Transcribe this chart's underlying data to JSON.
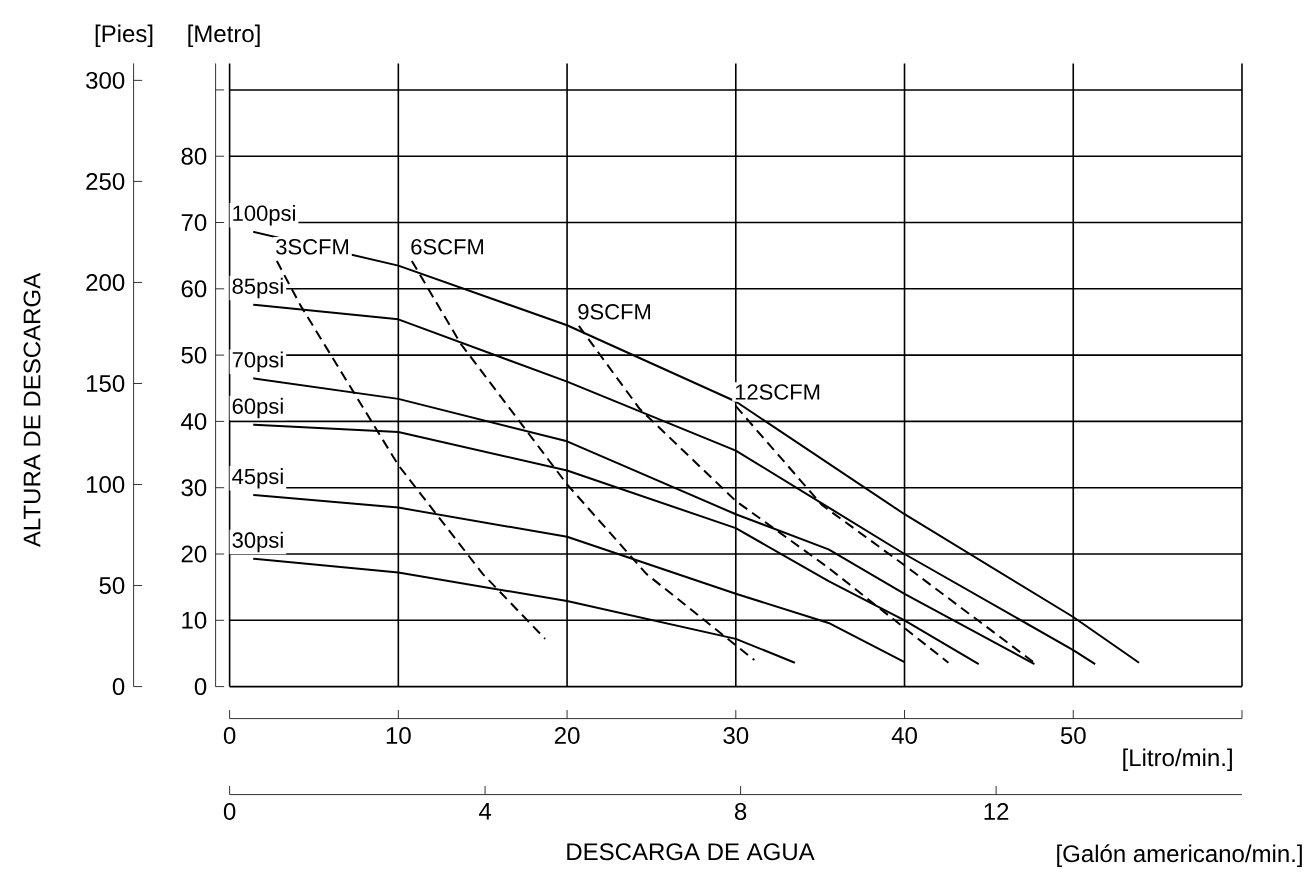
{
  "chart_data": {
    "type": "line",
    "xlabel": "[Litro/min.]",
    "x2label": "[Galón americano/min.]",
    "ylabel": "[Metro]",
    "y2label": "[Pies]",
    "annotations": [
      "ALTURA DE DESCARGA",
      "DESCARGA DE AGUA"
    ],
    "xlim": [
      0,
      60
    ],
    "xticks": [
      0,
      10,
      20,
      30,
      40,
      50,
      {
        "value": 60,
        "label": null
      }
    ],
    "x2lim": [
      0,
      15.85
    ],
    "x2ticks": [
      0,
      4,
      8,
      12
    ],
    "ylim": [
      0,
      94
    ],
    "yticks": [
      0,
      10,
      20,
      30,
      40,
      50,
      60,
      70,
      80,
      {
        "value": 90,
        "label": null
      }
    ],
    "y2lim": [
      0,
      308.4
    ],
    "y2ticks": [
      0,
      50,
      100,
      150,
      200,
      250,
      300
    ],
    "grid": true,
    "marker": "none",
    "series": [
      {
        "name": "100psi",
        "color": "#000000",
        "line_style": "solid",
        "x": [
          1.4,
          10,
          20,
          30,
          40,
          50,
          53.9
        ],
        "values": [
          68.6,
          63.5,
          54.5,
          43,
          26,
          10.5,
          3.6
        ]
      },
      {
        "name": "85psi",
        "color": "#000000",
        "line_style": "solid",
        "x": [
          1.4,
          10,
          20,
          30,
          40,
          50,
          51.3
        ],
        "values": [
          57.6,
          55.4,
          46,
          35.6,
          20,
          5.5,
          3.4
        ]
      },
      {
        "name": "70psi",
        "color": "#000000",
        "line_style": "solid",
        "x": [
          1.4,
          10,
          20,
          30,
          35.5,
          40,
          47.7
        ],
        "values": [
          46.5,
          43.4,
          37,
          26,
          20.7,
          14,
          3.4
        ]
      },
      {
        "name": "60psi",
        "color": "#000000",
        "line_style": "solid",
        "x": [
          1.4,
          10,
          20,
          30,
          35.5,
          40,
          44.4
        ],
        "values": [
          39.5,
          38.4,
          32.6,
          23.9,
          15.9,
          10,
          3.4
        ]
      },
      {
        "name": "45psi",
        "color": "#000000",
        "line_style": "solid",
        "x": [
          1.4,
          10,
          20,
          30,
          35.5,
          40
        ],
        "values": [
          28.9,
          27,
          22.6,
          14,
          9.6,
          3.7
        ]
      },
      {
        "name": "30psi",
        "color": "#000000",
        "line_style": "solid",
        "x": [
          1.4,
          10,
          20,
          30,
          33.5
        ],
        "values": [
          19.3,
          17.2,
          12.9,
          7.2,
          3.6
        ]
      },
      {
        "name": "3SCFM",
        "color": "#000000",
        "line_style": "dashed",
        "x": [
          2.8,
          4.2,
          10,
          15,
          18.7
        ],
        "values": [
          64.2,
          57.5,
          33.4,
          17,
          7.2
        ]
      },
      {
        "name": "6SCFM",
        "color": "#000000",
        "line_style": "dashed",
        "x": [
          10.8,
          13.7,
          20,
          24.7,
          31.1
        ],
        "values": [
          64.2,
          51.7,
          30.5,
          17,
          4
        ]
      },
      {
        "name": "9SCFM",
        "color": "#000000",
        "line_style": "dashed",
        "x": [
          20.7,
          24.3,
          30,
          35.5,
          42.6
        ],
        "values": [
          54.4,
          41.9,
          28,
          17.9,
          3.6
        ]
      },
      {
        "name": "12SCFM",
        "color": "#000000",
        "line_style": "dashed",
        "x": [
          30,
          35.1,
          40,
          47.8
        ],
        "values": [
          42.3,
          27.4,
          18.3,
          3.4
        ]
      }
    ]
  }
}
